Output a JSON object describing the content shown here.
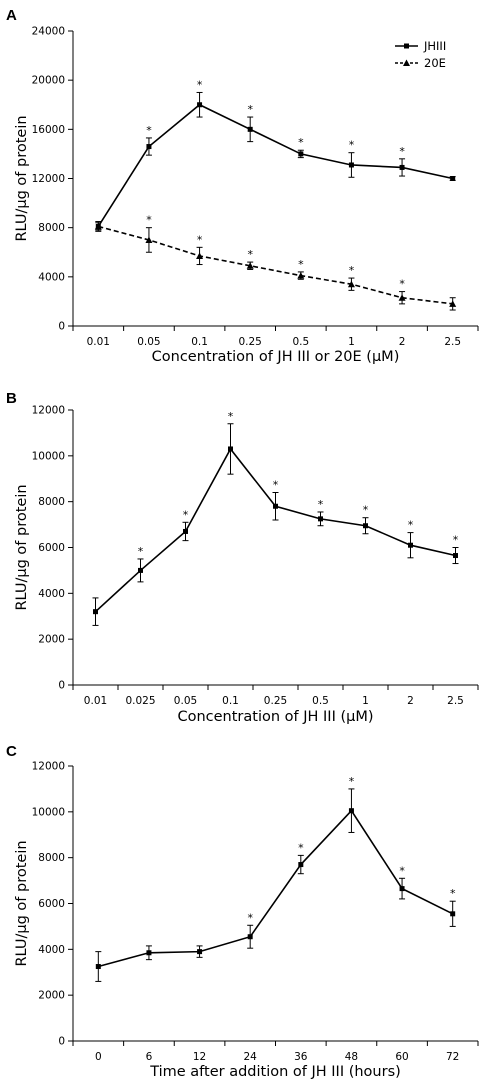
{
  "chart_data": [
    {
      "panel": "A",
      "type": "line",
      "categories": [
        "0.01",
        "0.05",
        "0.1",
        "0.25",
        "0.5",
        "1",
        "2",
        "2.5"
      ],
      "xlabel": "Concentration of JH III or 20E (μM)",
      "ylabel": "RLU/μg of protein",
      "ylim": [
        0,
        24000
      ],
      "yticks": [
        0,
        4000,
        8000,
        12000,
        16000,
        20000,
        24000
      ],
      "legend": "top-right",
      "series": [
        {
          "name": "JHIII",
          "marker": "square",
          "dash": "solid",
          "values": [
            8100,
            14600,
            18000,
            16000,
            14000,
            13100,
            12900,
            12000
          ],
          "errors": [
            400,
            700,
            1000,
            1000,
            300,
            1000,
            700,
            150
          ],
          "significant": [
            false,
            true,
            true,
            true,
            true,
            true,
            true,
            false
          ]
        },
        {
          "name": "20E",
          "marker": "triangle",
          "dash": "dashed",
          "values": [
            8100,
            7000,
            5700,
            4900,
            4100,
            3400,
            2300,
            1800
          ],
          "errors": [
            300,
            1000,
            700,
            300,
            300,
            500,
            500,
            500
          ],
          "significant": [
            false,
            true,
            true,
            true,
            true,
            true,
            true,
            false
          ]
        }
      ]
    },
    {
      "panel": "B",
      "type": "line",
      "categories": [
        "0.01",
        "0.025",
        "0.05",
        "0.1",
        "0.25",
        "0.5",
        "1",
        "2",
        "2.5"
      ],
      "xlabel": "Concentration of JH III (μM)",
      "ylabel": "RLU/μg of protein",
      "ylim": [
        0,
        12000
      ],
      "yticks": [
        0,
        2000,
        4000,
        6000,
        8000,
        10000,
        12000
      ],
      "series": [
        {
          "marker": "square",
          "dash": "solid",
          "values": [
            3200,
            5000,
            6700,
            10300,
            7800,
            7250,
            6950,
            6100,
            5650
          ],
          "errors": [
            600,
            500,
            400,
            1100,
            600,
            300,
            350,
            550,
            350
          ],
          "significant": [
            false,
            true,
            true,
            true,
            true,
            true,
            true,
            true,
            true
          ]
        }
      ]
    },
    {
      "panel": "C",
      "type": "line",
      "categories": [
        "0",
        "6",
        "12",
        "24",
        "36",
        "48",
        "60",
        "72"
      ],
      "xlabel": "Time after addition of JH III (hours)",
      "ylabel": "RLU/μg of protein",
      "ylim": [
        0,
        12000
      ],
      "yticks": [
        0,
        2000,
        4000,
        6000,
        8000,
        10000,
        12000
      ],
      "series": [
        {
          "marker": "square",
          "dash": "solid",
          "values": [
            3250,
            3850,
            3900,
            4550,
            7700,
            10050,
            6650,
            5550
          ],
          "errors": [
            650,
            300,
            250,
            500,
            400,
            950,
            450,
            550
          ],
          "significant": [
            false,
            false,
            false,
            true,
            true,
            true,
            true,
            true
          ]
        }
      ]
    }
  ],
  "significance_marker": "*"
}
